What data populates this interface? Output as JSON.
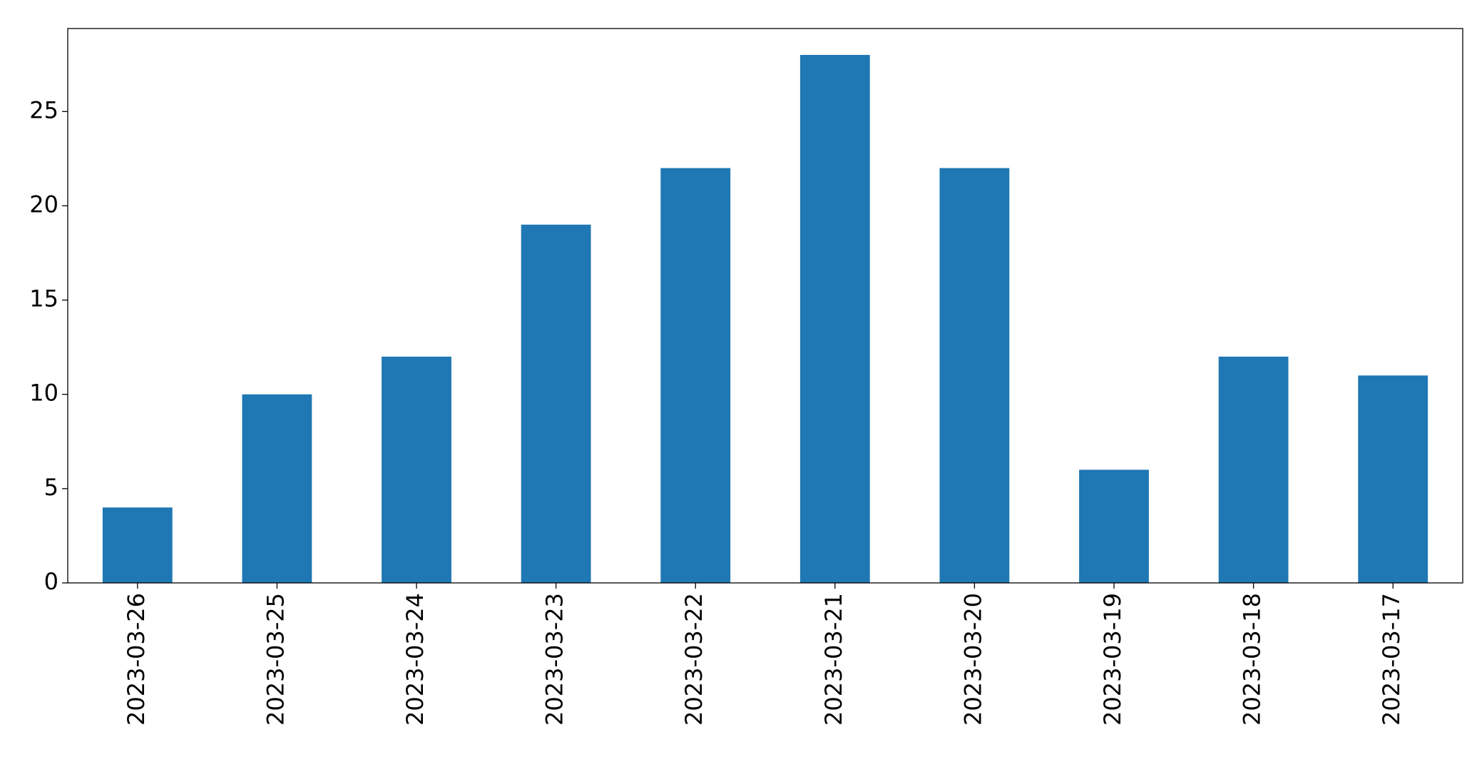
{
  "chart_data": {
    "type": "bar",
    "categories": [
      "2023-03-26",
      "2023-03-25",
      "2023-03-24",
      "2023-03-23",
      "2023-03-22",
      "2023-03-21",
      "2023-03-20",
      "2023-03-19",
      "2023-03-18",
      "2023-03-17"
    ],
    "values": [
      4,
      10,
      12,
      19,
      22,
      28,
      22,
      6,
      12,
      11
    ],
    "color": "#1f77b4",
    "ylim": [
      0,
      29.4
    ],
    "yticks": [
      0,
      5,
      10,
      15,
      20,
      25
    ],
    "grid": false
  }
}
